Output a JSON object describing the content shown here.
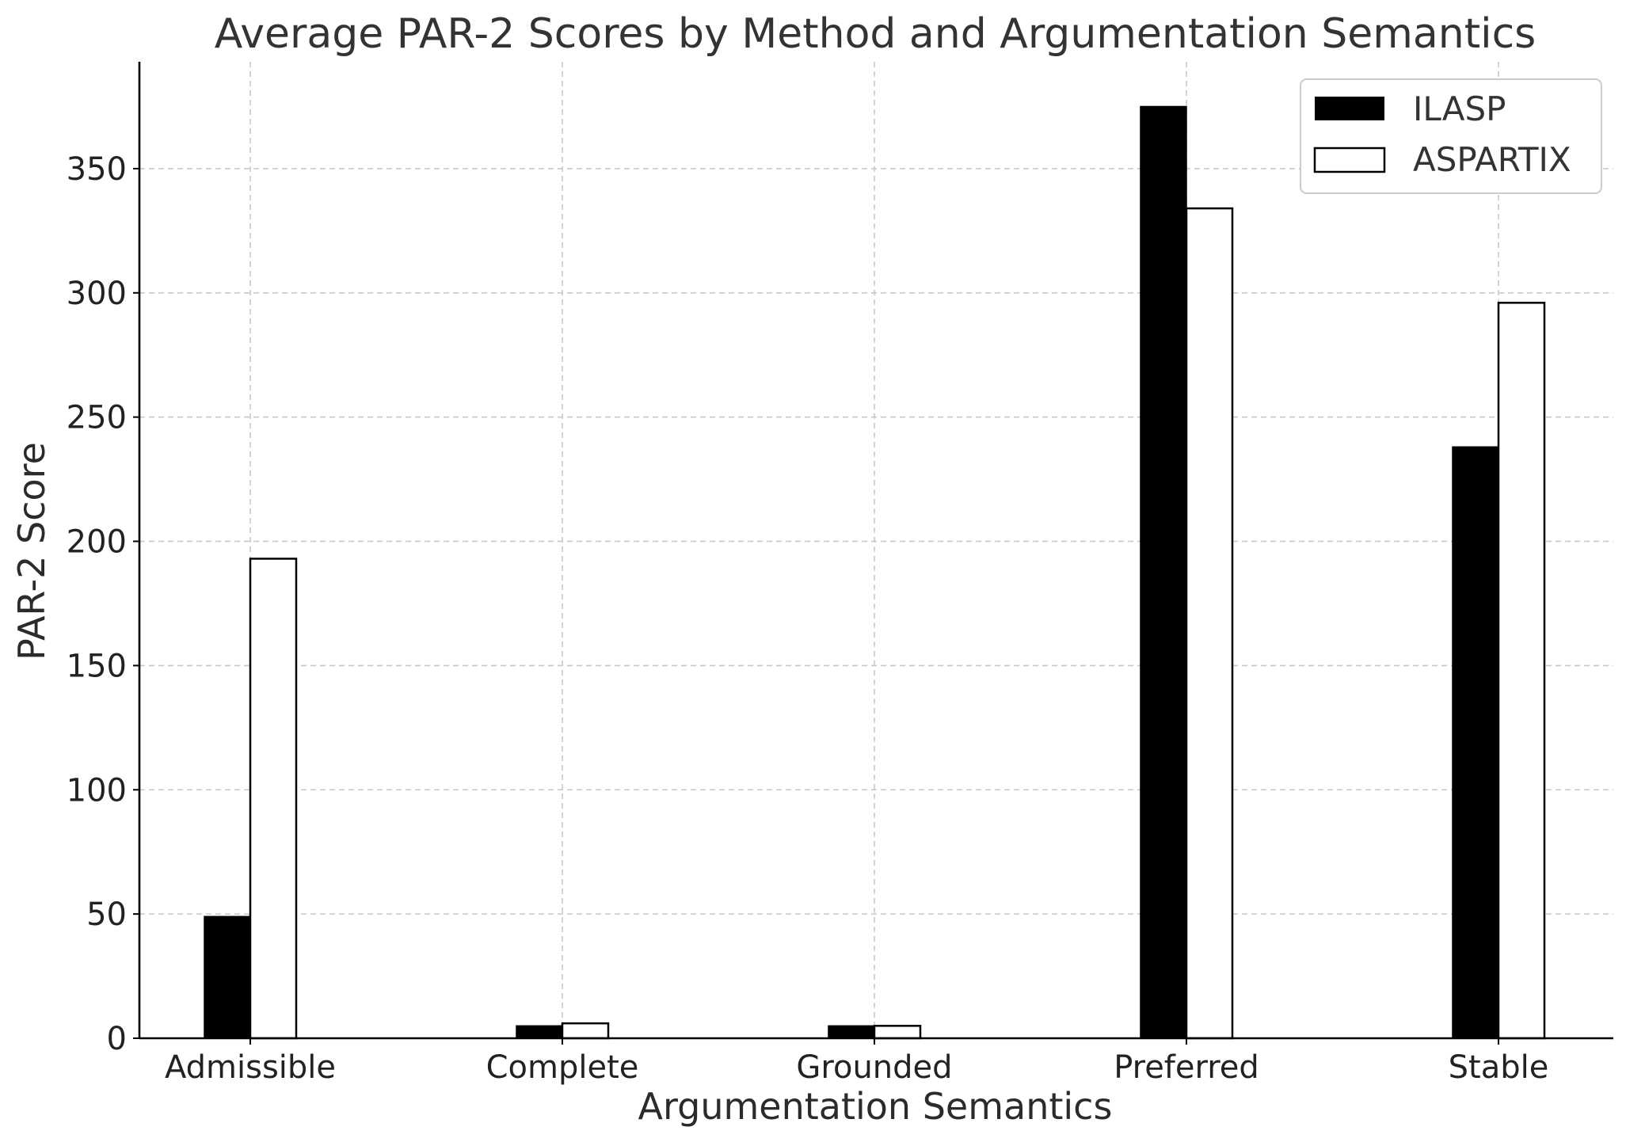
{
  "chart_data": {
    "type": "bar",
    "title": "Average PAR-2 Scores by Method and Argumentation Semantics",
    "xlabel": "Argumentation Semantics",
    "ylabel": "PAR-2 Score",
    "categories": [
      "Admissible",
      "Complete",
      "Grounded",
      "Preferred",
      "Stable"
    ],
    "series": [
      {
        "name": "ILASP",
        "values": [
          49,
          5,
          5,
          375,
          238
        ],
        "color": "#000000",
        "fill": "solid"
      },
      {
        "name": "ASPARTIX",
        "values": [
          193,
          6,
          5,
          334,
          296
        ],
        "color": "#000000",
        "fill": "hollow"
      }
    ],
    "ylim": [
      0,
      393
    ],
    "yticks": [
      0,
      50,
      100,
      150,
      200,
      250,
      300,
      350
    ],
    "grid": true,
    "legend_position": "top-right"
  }
}
